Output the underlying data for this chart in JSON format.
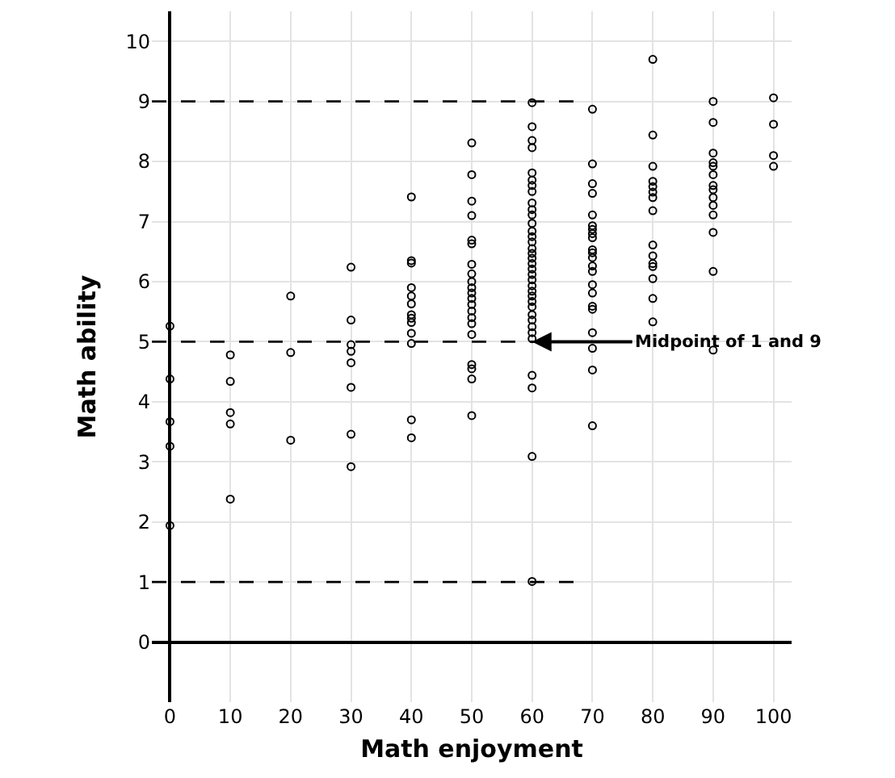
{
  "chart_data": {
    "type": "scatter",
    "xlabel": "Math enjoyment",
    "ylabel": "Math ability",
    "xlim": [
      -3,
      103
    ],
    "ylim": [
      -1,
      10.5
    ],
    "xticks": [
      0,
      10,
      20,
      30,
      40,
      50,
      60,
      70,
      80,
      90,
      100
    ],
    "yticks": [
      0,
      1,
      2,
      3,
      4,
      5,
      6,
      7,
      8,
      9,
      10
    ],
    "grid": true,
    "marker": "circle",
    "series": [
      {
        "color": "#000000",
        "x": [
          0,
          0,
          0,
          0,
          0,
          10,
          10,
          10,
          10,
          10,
          20,
          20,
          20,
          30,
          30,
          30,
          30,
          30,
          30,
          30,
          30,
          40,
          40,
          40,
          40,
          40,
          40,
          40,
          40,
          40,
          40,
          40,
          40,
          40,
          50,
          50,
          50,
          50,
          50,
          50,
          50,
          50,
          50,
          50,
          50,
          50,
          50,
          50,
          50,
          50,
          50,
          50,
          50,
          50,
          50,
          60,
          60,
          60,
          60,
          60,
          60,
          60,
          60,
          60,
          60,
          60,
          60,
          60,
          60,
          60,
          60,
          60,
          60,
          60,
          60,
          60,
          60,
          60,
          60,
          60,
          60,
          60,
          60,
          60,
          60,
          60,
          60,
          60,
          60,
          60,
          60,
          70,
          70,
          70,
          70,
          70,
          70,
          70,
          70,
          70,
          70,
          70,
          70,
          70,
          70,
          70,
          70,
          70,
          70,
          70,
          70,
          70,
          70,
          80,
          80,
          80,
          80,
          80,
          80,
          80,
          80,
          80,
          80,
          80,
          80,
          80,
          80,
          80,
          90,
          90,
          90,
          90,
          90,
          90,
          90,
          90,
          90,
          90,
          90,
          90,
          90,
          90,
          100,
          100,
          100,
          100
        ],
        "values": [
          5.26,
          4.38,
          3.67,
          3.26,
          1.94,
          4.78,
          4.34,
          3.82,
          3.63,
          2.38,
          5.76,
          4.82,
          3.36,
          6.24,
          5.36,
          4.95,
          4.84,
          4.65,
          4.24,
          3.46,
          2.92,
          7.41,
          6.35,
          6.31,
          5.9,
          5.76,
          5.63,
          5.45,
          5.39,
          5.32,
          5.14,
          4.97,
          3.7,
          3.4,
          8.31,
          7.78,
          7.34,
          7.1,
          6.69,
          6.63,
          6.29,
          6.13,
          6.0,
          5.9,
          5.81,
          5.72,
          5.62,
          5.51,
          5.4,
          5.3,
          5.12,
          4.62,
          4.55,
          4.38,
          3.77,
          8.98,
          8.58,
          8.35,
          8.23,
          7.81,
          7.69,
          7.6,
          7.5,
          7.31,
          7.2,
          7.11,
          6.97,
          6.84,
          6.75,
          6.66,
          6.55,
          6.47,
          6.39,
          6.3,
          6.21,
          6.12,
          6.03,
          5.93,
          5.84,
          5.76,
          5.67,
          5.58,
          5.45,
          5.36,
          5.25,
          5.15,
          5.05,
          4.44,
          4.23,
          3.09,
          1.01,
          8.87,
          7.96,
          7.63,
          7.47,
          7.11,
          6.93,
          6.87,
          6.8,
          6.73,
          6.53,
          6.48,
          6.4,
          6.26,
          6.17,
          5.95,
          5.81,
          5.59,
          5.54,
          5.15,
          4.89,
          4.53,
          3.6,
          9.7,
          8.44,
          7.92,
          7.67,
          7.58,
          7.49,
          7.4,
          7.18,
          6.61,
          6.43,
          6.3,
          6.25,
          6.05,
          5.72,
          5.33,
          9.0,
          8.65,
          8.14,
          7.98,
          7.92,
          7.78,
          7.6,
          7.53,
          7.4,
          7.27,
          7.11,
          6.82,
          6.17,
          4.86,
          9.06,
          8.62,
          8.1,
          7.92
        ]
      }
    ],
    "ref_lines": [
      {
        "axis": "y",
        "value": 9,
        "line_style": "dashed",
        "color": "#000000"
      },
      {
        "axis": "y",
        "value": 5,
        "line_style": "dashed",
        "color": "#000000"
      },
      {
        "axis": "y",
        "value": 1,
        "line_style": "dashed",
        "color": "#000000"
      }
    ],
    "annotations": [
      {
        "text": "Midpoint of 1 and 9",
        "x": 60,
        "y": 5
      }
    ]
  }
}
